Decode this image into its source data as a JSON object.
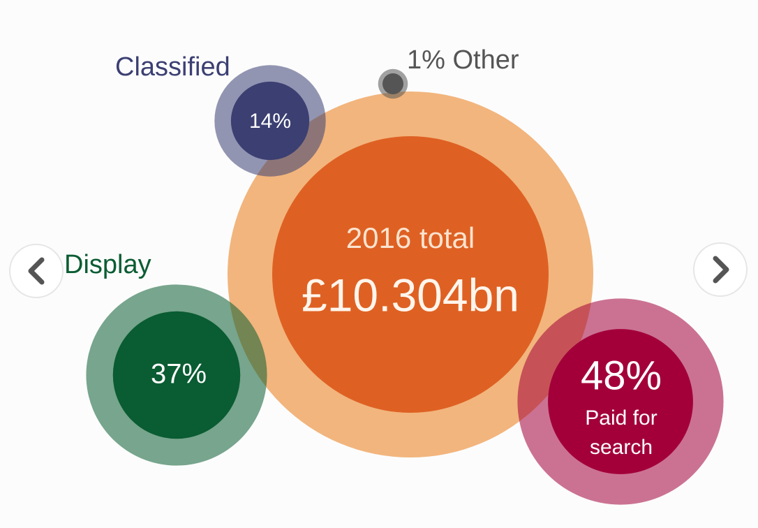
{
  "chart_data": {
    "type": "bubble",
    "total": {
      "label": "2016 total",
      "value": 10.304,
      "value_label": "£10.304bn",
      "colors": [
        "#f2b57d",
        "#de6123"
      ]
    },
    "categories": [
      "Classified",
      "Other",
      "Display",
      "Paid for search"
    ],
    "values": [
      14,
      1,
      37,
      48
    ],
    "value_labels": [
      "14%",
      "1%",
      "37%",
      "48%"
    ],
    "colors": [
      "#3b3f72",
      "#555555",
      "#0a5c32",
      "#a3003a"
    ]
  }
}
